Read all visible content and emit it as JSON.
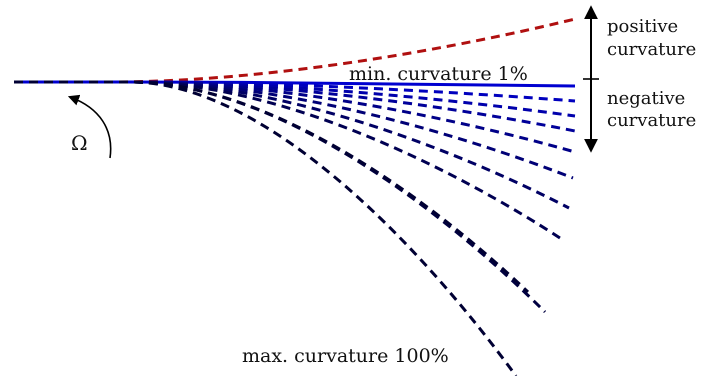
{
  "labels": {
    "positive": [
      "positive",
      "curvature"
    ],
    "negative": [
      "negative",
      "curvature"
    ],
    "min": "min. curvature 1%",
    "max": "max. curvature 100%",
    "omega": "Ω"
  },
  "colors": {
    "positive_curve": "#b01010",
    "min_curve": "#0000d0",
    "deep_curve": "#000033",
    "text": "#111111"
  },
  "curves": {
    "positive_count": 1,
    "negative_count": 11,
    "style": "dashed, except the min. curvature curve which is solid"
  }
}
